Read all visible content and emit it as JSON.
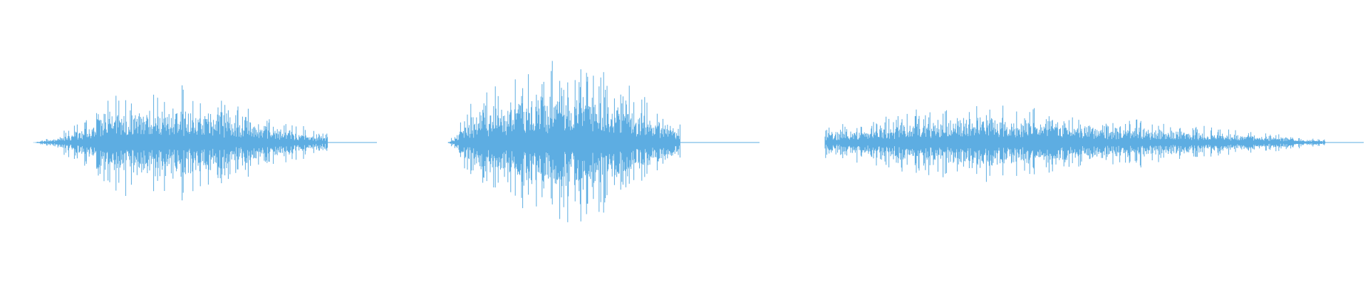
{
  "colors": {
    "background": "#ffffff",
    "waveform": "#5dade2"
  },
  "waveforms": [
    {
      "id": "waveform-1"
    },
    {
      "id": "waveform-2"
    },
    {
      "id": "waveform-3"
    }
  ]
}
